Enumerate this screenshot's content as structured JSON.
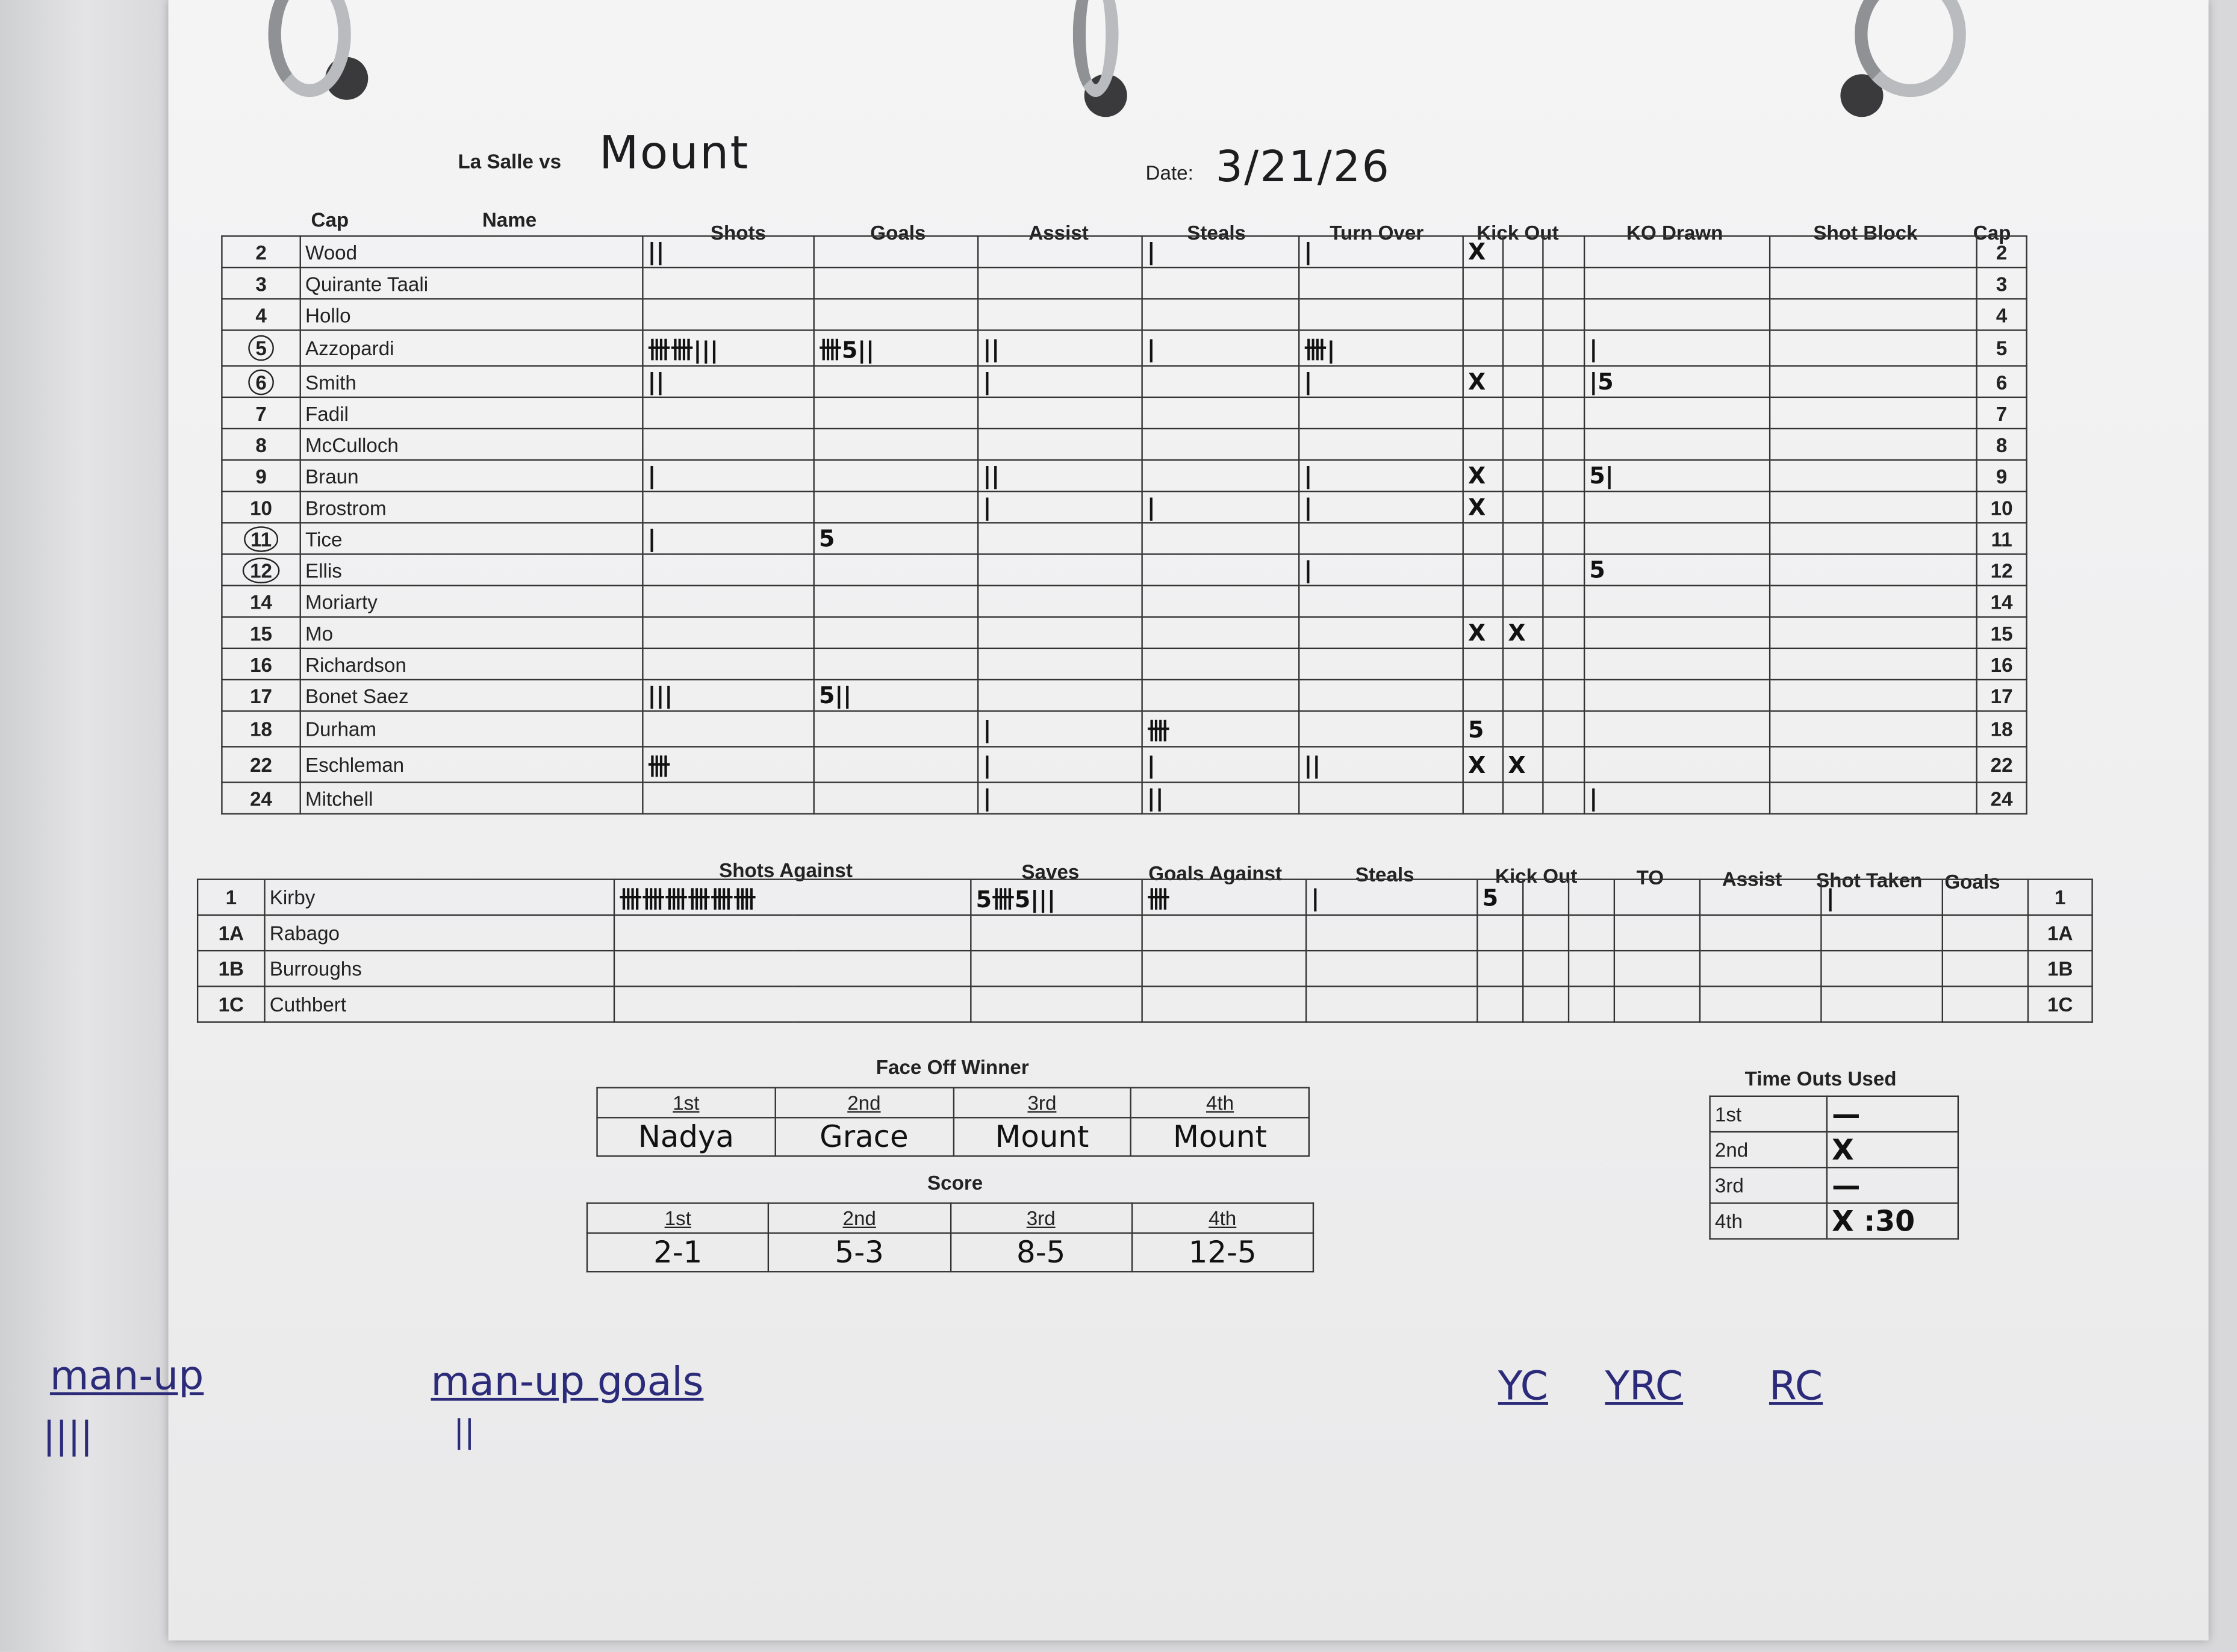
{
  "header": {
    "team": "La Salle vs",
    "opponent": "Mount",
    "date_label": "Date:",
    "date": "3/21/26"
  },
  "players": {
    "columns": [
      "Cap",
      "Name",
      "Shots",
      "Goals",
      "Assist",
      "Steals",
      "Turn Over",
      "Kick Out",
      "KO Drawn",
      "Shot Block",
      "Cap"
    ],
    "rows": [
      {
        "cap": "2",
        "name": "Wood",
        "shots": "||",
        "goals": "",
        "assist": "",
        "steals": "|",
        "turnover": "|",
        "kick_out": [
          "X",
          "",
          ""
        ],
        "ko_drawn": "",
        "shot_block": ""
      },
      {
        "cap": "3",
        "name": "Quirante Taali",
        "shots": "",
        "goals": "",
        "assist": "",
        "steals": "",
        "turnover": "",
        "kick_out": [
          "",
          "",
          ""
        ],
        "ko_drawn": "",
        "shot_block": ""
      },
      {
        "cap": "4",
        "name": "Hollo",
        "shots": "",
        "goals": "",
        "assist": "",
        "steals": "",
        "turnover": "",
        "kick_out": [
          "",
          "",
          ""
        ],
        "ko_drawn": "",
        "shot_block": ""
      },
      {
        "cap": "5",
        "circled": true,
        "name": "Azzopardi",
        "shots": "卌卌|||",
        "goals": "卌5||",
        "assist": "||",
        "steals": "|",
        "turnover": "卌|",
        "kick_out": [
          "",
          "",
          ""
        ],
        "ko_drawn": "|",
        "shot_block": ""
      },
      {
        "cap": "6",
        "circled": true,
        "name": "Smith",
        "shots": "||",
        "goals": "",
        "assist": "|",
        "steals": "",
        "turnover": "|",
        "kick_out": [
          "X",
          "",
          ""
        ],
        "ko_drawn": "|5",
        "shot_block": ""
      },
      {
        "cap": "7",
        "name": "Fadil",
        "shots": "",
        "goals": "",
        "assist": "",
        "steals": "",
        "turnover": "",
        "kick_out": [
          "",
          "",
          ""
        ],
        "ko_drawn": "",
        "shot_block": ""
      },
      {
        "cap": "8",
        "name": "McCulloch",
        "shots": "",
        "goals": "",
        "assist": "",
        "steals": "",
        "turnover": "",
        "kick_out": [
          "",
          "",
          ""
        ],
        "ko_drawn": "",
        "shot_block": ""
      },
      {
        "cap": "9",
        "name": "Braun",
        "shots": "|",
        "goals": "",
        "assist": "||",
        "steals": "",
        "turnover": "|",
        "kick_out": [
          "X",
          "",
          ""
        ],
        "ko_drawn": "5|",
        "shot_block": ""
      },
      {
        "cap": "10",
        "name": "Brostrom",
        "shots": "",
        "goals": "",
        "assist": "|",
        "steals": "|",
        "turnover": "|",
        "kick_out": [
          "X",
          "",
          ""
        ],
        "ko_drawn": "",
        "shot_block": ""
      },
      {
        "cap": "11",
        "circled": true,
        "name": "Tice",
        "shots": "|",
        "goals": "5",
        "assist": "",
        "steals": "",
        "turnover": "",
        "kick_out": [
          "",
          "",
          ""
        ],
        "ko_drawn": "",
        "shot_block": ""
      },
      {
        "cap": "12",
        "circled": true,
        "name": "Ellis",
        "shots": "",
        "goals": "",
        "assist": "",
        "steals": "",
        "turnover": "|",
        "kick_out": [
          "",
          "",
          ""
        ],
        "ko_drawn": "5",
        "shot_block": ""
      },
      {
        "cap": "14",
        "name": "Moriarty",
        "shots": "",
        "goals": "",
        "assist": "",
        "steals": "",
        "turnover": "",
        "kick_out": [
          "",
          "",
          ""
        ],
        "ko_drawn": "",
        "shot_block": ""
      },
      {
        "cap": "15",
        "name": "Mo",
        "shots": "",
        "goals": "",
        "assist": "",
        "steals": "",
        "turnover": "",
        "kick_out": [
          "X",
          "X",
          ""
        ],
        "ko_drawn": "",
        "shot_block": ""
      },
      {
        "cap": "16",
        "name": "Richardson",
        "shots": "",
        "goals": "",
        "assist": "",
        "steals": "",
        "turnover": "",
        "kick_out": [
          "",
          "",
          ""
        ],
        "ko_drawn": "",
        "shot_block": ""
      },
      {
        "cap": "17",
        "name": "Bonet Saez",
        "shots": "|||",
        "goals": "5||",
        "assist": "",
        "steals": "",
        "turnover": "",
        "kick_out": [
          "",
          "",
          ""
        ],
        "ko_drawn": "",
        "shot_block": ""
      },
      {
        "cap": "18",
        "name": "Durham",
        "shots": "",
        "goals": "",
        "assist": "|",
        "steals": "卌",
        "turnover": "",
        "kick_out": [
          "5",
          "",
          ""
        ],
        "ko_drawn": "",
        "shot_block": ""
      },
      {
        "cap": "22",
        "name": "Eschleman",
        "shots": "卌",
        "goals": "",
        "assist": "|",
        "steals": "|",
        "turnover": "||",
        "kick_out": [
          "X",
          "X",
          ""
        ],
        "ko_drawn": "",
        "shot_block": ""
      },
      {
        "cap": "24",
        "name": "Mitchell",
        "shots": "",
        "goals": "",
        "assist": "|",
        "steals": "||",
        "turnover": "",
        "kick_out": [
          "",
          "",
          ""
        ],
        "ko_drawn": "|",
        "shot_block": ""
      }
    ]
  },
  "goalies": {
    "columns": [
      "Shots Against",
      "Saves",
      "Goals Against",
      "Steals",
      "Kick Out",
      "TO",
      "Assist",
      "Shot Taken",
      "Goals"
    ],
    "rows": [
      {
        "cap": "1",
        "name": "Kirby",
        "shots_against": "卌卌卌卌卌卌",
        "saves": "5卌5|||",
        "goals_against": "卌",
        "steals": "|",
        "kick_out": [
          "5",
          "",
          ""
        ],
        "to": "",
        "assist": "",
        "shot_taken": "|",
        "goals": ""
      },
      {
        "cap": "1A",
        "name": "Rabago",
        "shots_against": "",
        "saves": "",
        "goals_against": "",
        "steals": "",
        "kick_out": [
          "",
          "",
          ""
        ],
        "to": "",
        "assist": "",
        "shot_taken": "",
        "goals": ""
      },
      {
        "cap": "1B",
        "name": "Burroughs",
        "shots_against": "",
        "saves": "",
        "goals_against": "",
        "steals": "",
        "kick_out": [
          "",
          "",
          ""
        ],
        "to": "",
        "assist": "",
        "shot_taken": "",
        "goals": ""
      },
      {
        "cap": "1C",
        "name": "Cuthbert",
        "shots_against": "",
        "saves": "",
        "goals_against": "",
        "steals": "",
        "kick_out": [
          "",
          "",
          ""
        ],
        "to": "",
        "assist": "",
        "shot_taken": "",
        "goals": ""
      }
    ]
  },
  "face_off": {
    "title": "Face Off Winner",
    "periods": [
      "1st",
      "2nd",
      "3rd",
      "4th"
    ],
    "winners": [
      "Nadya",
      "Grace",
      "Mount",
      "Mount"
    ]
  },
  "score": {
    "title": "Score",
    "periods": [
      "1st",
      "2nd",
      "3rd",
      "4th"
    ],
    "values": [
      "2-1",
      "5-3",
      "8-5",
      "12-5"
    ]
  },
  "timeouts": {
    "title": "Time Outs Used",
    "rows": [
      {
        "period": "1st",
        "value": "—"
      },
      {
        "period": "2nd",
        "value": "X"
      },
      {
        "period": "3rd",
        "value": "—"
      },
      {
        "period": "4th",
        "value": "X :30"
      }
    ]
  },
  "notes": {
    "man_up": "man-up",
    "man_up_tally": "||||",
    "man_up_goals": "man-up goals",
    "man_up_goals_tally": "||",
    "yc": "YC",
    "yrc": "YRC",
    "rc": "RC"
  },
  "colors": {
    "ink": "#1d1d1f",
    "pen_blue": "#2b2b7a",
    "paper": "#f2f2f3"
  }
}
